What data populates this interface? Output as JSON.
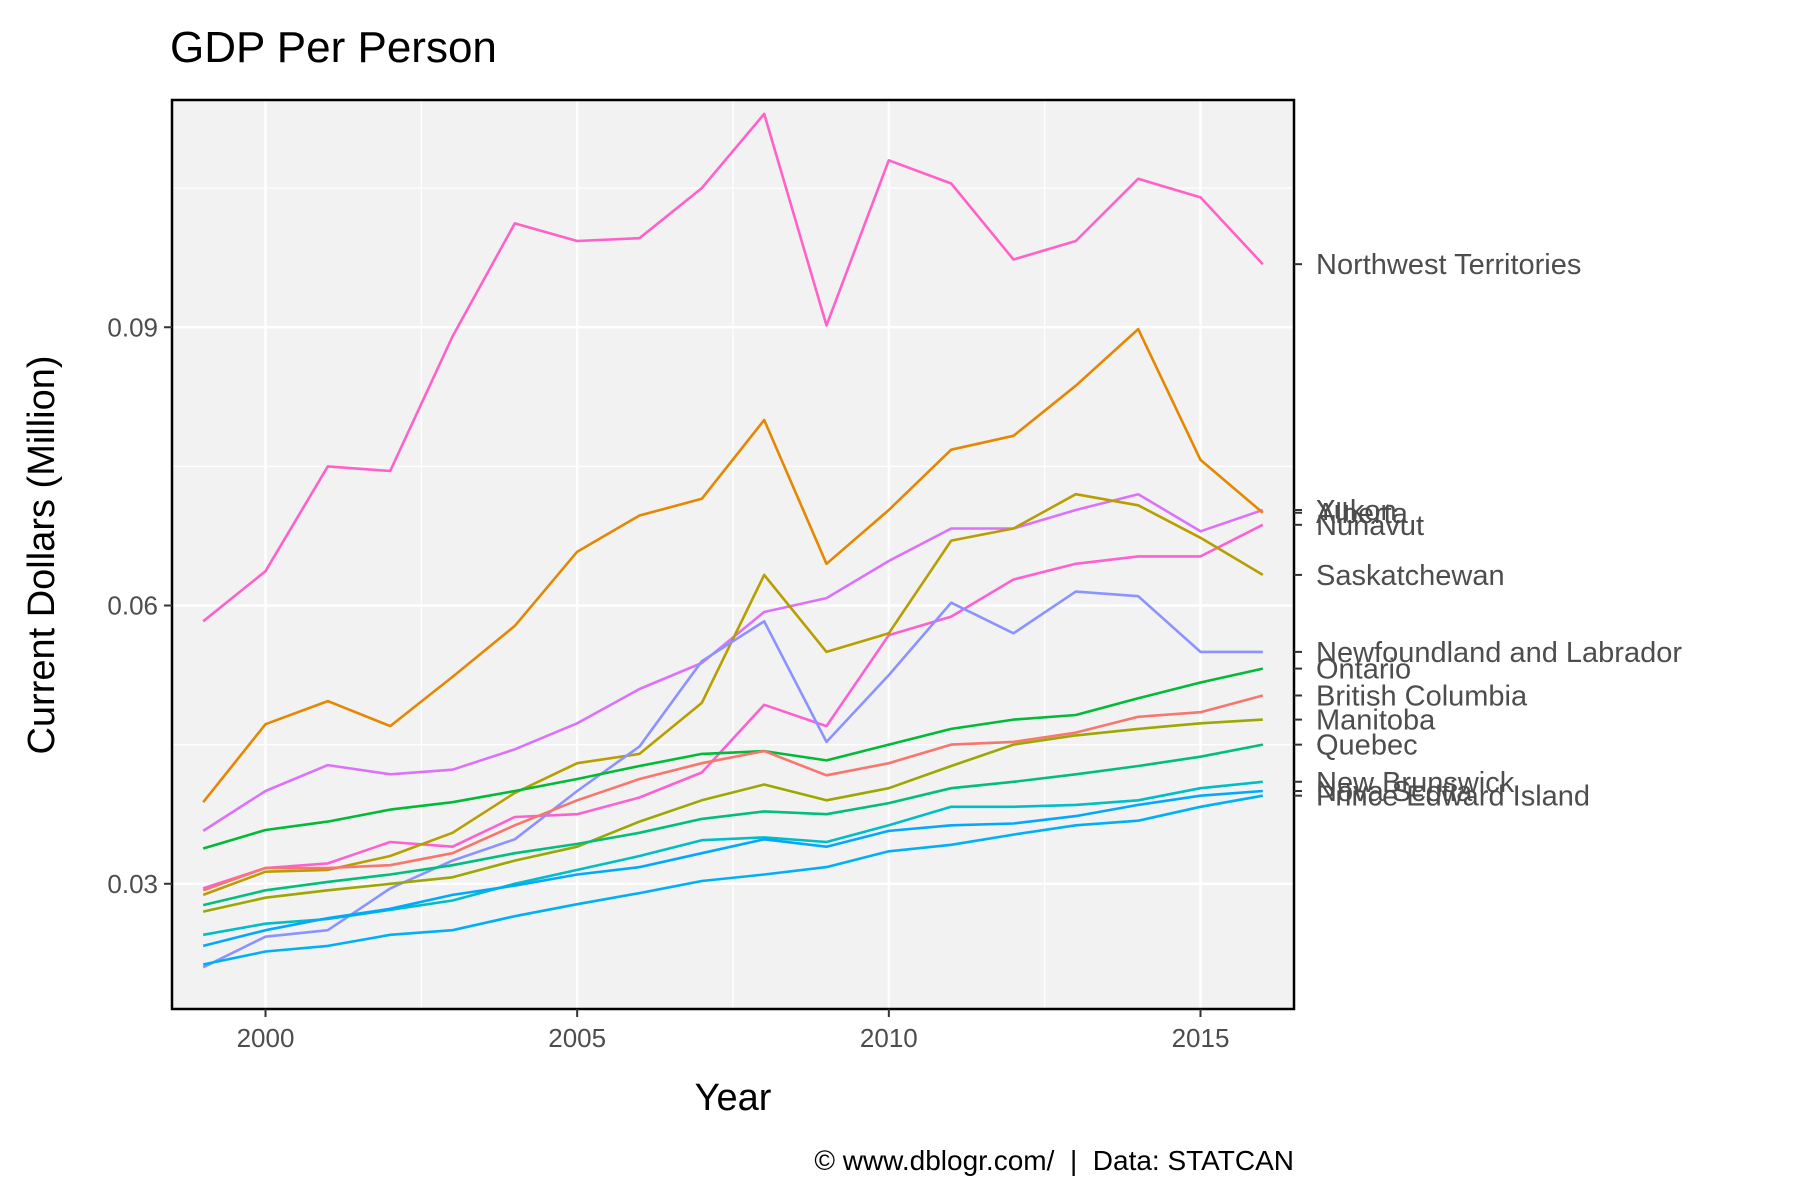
{
  "chart_data": {
    "type": "line",
    "title": "GDP Per Person",
    "xlabel": "Year",
    "ylabel": "Current Dollars (Million)",
    "caption": "© www.dblogr.com/  |  Data: STATCAN",
    "xlim": [
      1998.5,
      2016.5
    ],
    "ylim": [
      0.0165,
      0.1145
    ],
    "x_ticks": [
      2000,
      2005,
      2010,
      2015
    ],
    "y_ticks": [
      0.03,
      0.06,
      0.09
    ],
    "y_tick_labels": [
      "0.03",
      "0.06",
      "0.09"
    ],
    "grid": true,
    "legend": "labels at right end of lines",
    "x": [
      1999,
      2000,
      2001,
      2002,
      2003,
      2004,
      2005,
      2006,
      2007,
      2008,
      2009,
      2010,
      2011,
      2012,
      2013,
      2014,
      2015,
      2016
    ],
    "series": [
      {
        "name": "Northwest Territories",
        "color": "#FF61C9",
        "values": [
          0.0583,
          0.0637,
          0.075,
          0.0745,
          0.089,
          0.1012,
          0.0993,
          0.0996,
          0.105,
          0.113,
          0.0902,
          0.108,
          0.1055,
          0.0973,
          0.0993,
          0.106,
          0.104,
          0.0968
        ]
      },
      {
        "name": "Yukon",
        "color": "#DB72FB",
        "values": [
          0.0357,
          0.04,
          0.0428,
          0.0418,
          0.0423,
          0.0445,
          0.0473,
          0.051,
          0.0538,
          0.0593,
          0.0608,
          0.0648,
          0.0683,
          0.0683,
          0.0703,
          0.072,
          0.068,
          0.0703
        ]
      },
      {
        "name": "Alberta",
        "color": "#E58700",
        "values": [
          0.0388,
          0.0472,
          0.0497,
          0.047,
          0.0523,
          0.0578,
          0.0658,
          0.0697,
          0.0715,
          0.08,
          0.0645,
          0.0703,
          0.0768,
          0.0783,
          0.0837,
          0.0898,
          0.0757,
          0.07
        ]
      },
      {
        "name": "Nunavut",
        "color": "#FD61D1",
        "values": [
          0.0295,
          0.0317,
          0.0322,
          0.0345,
          0.034,
          0.0372,
          0.0375,
          0.0393,
          0.042,
          0.0493,
          0.047,
          0.0568,
          0.0588,
          0.0628,
          0.0645,
          0.0653,
          0.0653,
          0.0687
        ]
      },
      {
        "name": "Saskatchewan",
        "color": "#B79F00",
        "values": [
          0.0288,
          0.0313,
          0.0315,
          0.033,
          0.0355,
          0.0398,
          0.043,
          0.044,
          0.0495,
          0.0633,
          0.055,
          0.057,
          0.067,
          0.0683,
          0.072,
          0.0708,
          0.0673,
          0.0633
        ]
      },
      {
        "name": "Newfoundland and Labrador",
        "color": "#8B93FF",
        "values": [
          0.021,
          0.0243,
          0.025,
          0.0295,
          0.0325,
          0.0348,
          0.04,
          0.0448,
          0.054,
          0.0583,
          0.0453,
          0.0525,
          0.0603,
          0.057,
          0.0615,
          0.061,
          0.055,
          0.055
        ]
      },
      {
        "name": "Ontario",
        "color": "#00BA38",
        "values": [
          0.0338,
          0.0358,
          0.0367,
          0.038,
          0.0388,
          0.04,
          0.0413,
          0.0427,
          0.044,
          0.0443,
          0.0433,
          0.045,
          0.0467,
          0.0477,
          0.0482,
          0.05,
          0.0517,
          0.0532
        ]
      },
      {
        "name": "British Columbia",
        "color": "#F8766D",
        "values": [
          0.0293,
          0.0317,
          0.0317,
          0.032,
          0.0333,
          0.0363,
          0.039,
          0.0413,
          0.043,
          0.0443,
          0.0417,
          0.043,
          0.045,
          0.0453,
          0.0463,
          0.048,
          0.0485,
          0.0503
        ]
      },
      {
        "name": "Manitoba",
        "color": "#9DA700",
        "values": [
          0.027,
          0.0285,
          0.0293,
          0.03,
          0.0307,
          0.0325,
          0.034,
          0.0367,
          0.039,
          0.0407,
          0.039,
          0.0403,
          0.0427,
          0.045,
          0.046,
          0.0467,
          0.0473,
          0.0477
        ]
      },
      {
        "name": "Quebec",
        "color": "#00BF7D",
        "values": [
          0.0277,
          0.0293,
          0.0302,
          0.031,
          0.032,
          0.0333,
          0.0343,
          0.0355,
          0.037,
          0.0378,
          0.0375,
          0.0387,
          0.0403,
          0.041,
          0.0418,
          0.0427,
          0.0437,
          0.045
        ]
      },
      {
        "name": "New Brunswick",
        "color": "#00BFC4",
        "values": [
          0.0245,
          0.0257,
          0.0262,
          0.0272,
          0.0282,
          0.03,
          0.0315,
          0.033,
          0.0347,
          0.035,
          0.0345,
          0.0363,
          0.0383,
          0.0383,
          0.0385,
          0.039,
          0.0403,
          0.041
        ]
      },
      {
        "name": "Nova Scotia",
        "color": "#00A9FF",
        "values": [
          0.0233,
          0.025,
          0.0263,
          0.0273,
          0.0288,
          0.0298,
          0.031,
          0.0318,
          0.0333,
          0.0348,
          0.034,
          0.0357,
          0.0363,
          0.0365,
          0.0373,
          0.0385,
          0.0395,
          0.04
        ]
      },
      {
        "name": "Prince Edward Island",
        "color": "#00B0F6",
        "values": [
          0.0213,
          0.0227,
          0.0233,
          0.0245,
          0.025,
          0.0265,
          0.0278,
          0.029,
          0.0303,
          0.031,
          0.0318,
          0.0335,
          0.0342,
          0.0353,
          0.0363,
          0.0368,
          0.0383,
          0.0395
        ]
      }
    ]
  }
}
